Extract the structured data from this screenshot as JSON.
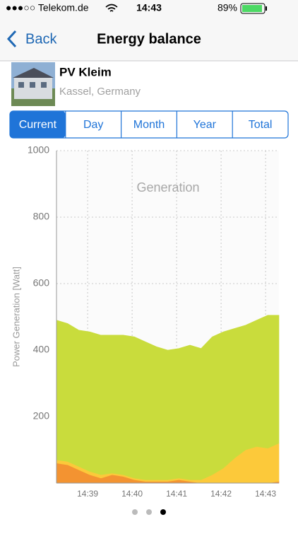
{
  "status_bar": {
    "carrier": "●●●○○ Telekom.de",
    "time": "14:43",
    "battery": "89%"
  },
  "nav": {
    "back": "Back",
    "title": "Energy balance"
  },
  "plant": {
    "name": "PV Kleim",
    "location": "Kassel, Germany"
  },
  "tabs": {
    "items": [
      "Current",
      "Day",
      "Month",
      "Year",
      "Total"
    ],
    "active": 0
  },
  "chart_data": {
    "type": "stacked-area",
    "title": "Generation",
    "y_label": "Power Generation [Watt]",
    "x": [
      38.3,
      38.55,
      38.8,
      39.05,
      39.3,
      39.55,
      39.8,
      40.05,
      40.3,
      40.55,
      40.8,
      41.05,
      41.3,
      41.55,
      41.8,
      42.05,
      42.3,
      42.55,
      42.8,
      43.05,
      43.3
    ],
    "series": [
      {
        "color": "#f39331",
        "values": [
          60,
          55,
          40,
          25,
          15,
          25,
          20,
          10,
          5,
          5,
          5,
          10,
          5,
          0,
          0,
          0,
          0,
          0,
          0,
          0,
          5
        ]
      },
      {
        "color": "#fcc93a",
        "values": [
          10,
          10,
          10,
          10,
          10,
          5,
          5,
          5,
          5,
          5,
          5,
          5,
          5,
          10,
          25,
          45,
          75,
          100,
          110,
          105,
          115
        ]
      },
      {
        "color": "#c9dc3c",
        "values": [
          420,
          415,
          410,
          420,
          420,
          415,
          420,
          425,
          415,
          400,
          390,
          390,
          405,
          395,
          415,
          410,
          390,
          375,
          380,
          400,
          385
        ]
      }
    ],
    "ylim": [
      0,
      1000
    ],
    "yticks": [
      200,
      400,
      600,
      800,
      1000
    ],
    "xlim": [
      38.3,
      43.3
    ],
    "xticks": [
      {
        "value": 39,
        "label": "14:39"
      },
      {
        "value": 40,
        "label": "14:40"
      },
      {
        "value": 41,
        "label": "14:41"
      },
      {
        "value": 42,
        "label": "14:42"
      },
      {
        "value": 43,
        "label": "14:43"
      }
    ],
    "grid": true
  },
  "page_indicator": {
    "count": 3,
    "active": 2
  }
}
